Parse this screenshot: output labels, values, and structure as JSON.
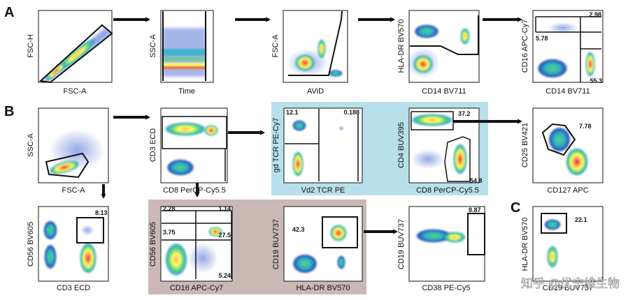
{
  "sections": {
    "a": "A",
    "b": "B",
    "c": "C"
  },
  "watermark": "知乎 @优宁维生物",
  "colors": {
    "cyan_panel": "#b8e0ea",
    "mauve_panel": "#c9b8b4",
    "arrow": "#111111"
  },
  "plots": {
    "a1": {
      "x": "FSC-A",
      "y": "FSC-H"
    },
    "a2": {
      "x": "Time",
      "y": "SSC-A"
    },
    "a3": {
      "x": "AViD",
      "y": "FSC-A"
    },
    "a4": {
      "x": "CD14 BV711",
      "y": "HLA-DR BV570"
    },
    "a5": {
      "x": "CD14 BV711",
      "y": "CD16 APC-Cy7",
      "v1": "2.98",
      "v2": "5.78",
      "v3": "55.3"
    },
    "b1": {
      "x": "FSC-A",
      "y": "SSC-A"
    },
    "b2": {
      "x": "CD8 PerCP-Cy5.5",
      "y": "CD3 ECD"
    },
    "b3": {
      "x": "Vd2 TCR PE",
      "y": "gd TCR PE-Cy7",
      "v1": "12.1",
      "v2": "0.188"
    },
    "b4": {
      "x": "CD8 PerCP-Cy5.5",
      "y": "CD4 BUV395",
      "v1": "37.2",
      "v2": "54.8"
    },
    "b5": {
      "x": "CD127 APC",
      "y": "CD25 BV421",
      "v1": "7.78"
    },
    "b6": {
      "x": "CD3 ECD",
      "y": "CD56 BV605",
      "v1": "8.13"
    },
    "b7": {
      "x": "CD16 APC-Cy7",
      "y": "CD56 BV605",
      "v1": "2.28",
      "v2": "1.14",
      "v3": "3.75",
      "v4": "27.5",
      "v5": "5.24"
    },
    "b8": {
      "x": "HLA-DR BV570",
      "y": "CD19 BUV737",
      "v1": "42.3"
    },
    "b9": {
      "x": "CD38 PE-Cy5",
      "y": "CD19 BUV737",
      "v1": "8.87"
    },
    "c1": {
      "x": "CD19 BUV737",
      "y": "HLA-DR BV570",
      "v1": "22.1"
    }
  }
}
